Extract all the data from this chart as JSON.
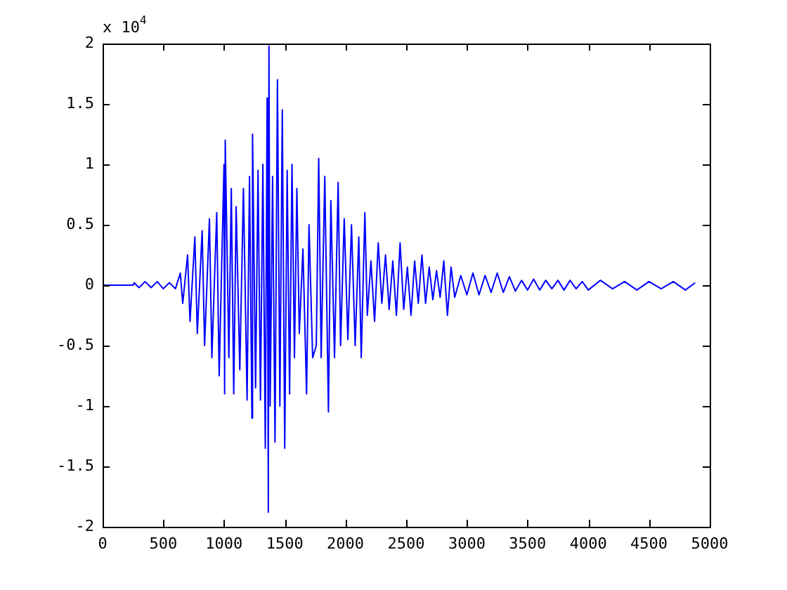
{
  "chart_data": {
    "type": "line",
    "color": "#0000ff",
    "marker": "none",
    "line_style": "solid",
    "grid": false,
    "legend": false,
    "annotations": [
      "x 10$^{4}$"
    ],
    "xlim": [
      0,
      5000
    ],
    "xticks": [
      0,
      500,
      1000,
      1500,
      2000,
      2500,
      3000,
      3500,
      4000,
      4500,
      5000
    ],
    "ylim": [
      -2,
      2
    ],
    "yticks": [
      -2,
      -1.5,
      -1,
      -0.5,
      0,
      0.5,
      1,
      1.5,
      2
    ],
    "x": [
      0,
      250,
      260,
      300,
      350,
      400,
      450,
      500,
      550,
      600,
      640,
      660,
      700,
      720,
      760,
      780,
      820,
      840,
      880,
      900,
      940,
      960,
      1000,
      1005,
      1010,
      1040,
      1060,
      1080,
      1100,
      1130,
      1160,
      1190,
      1210,
      1230,
      1235,
      1260,
      1280,
      1300,
      1320,
      1340,
      1355,
      1365,
      1370,
      1380,
      1400,
      1420,
      1440,
      1460,
      1480,
      1500,
      1520,
      1540,
      1560,
      1580,
      1600,
      1620,
      1650,
      1680,
      1700,
      1730,
      1760,
      1780,
      1800,
      1830,
      1860,
      1880,
      1910,
      1940,
      1960,
      1990,
      2020,
      2050,
      2080,
      2110,
      2130,
      2160,
      2180,
      2210,
      2240,
      2270,
      2300,
      2330,
      2360,
      2390,
      2420,
      2450,
      2480,
      2510,
      2540,
      2570,
      2600,
      2630,
      2660,
      2690,
      2720,
      2750,
      2780,
      2810,
      2840,
      2870,
      2900,
      2950,
      3000,
      3050,
      3100,
      3150,
      3200,
      3250,
      3300,
      3350,
      3400,
      3450,
      3500,
      3550,
      3600,
      3650,
      3700,
      3750,
      3800,
      3850,
      3900,
      3950,
      4000,
      4100,
      4200,
      4300,
      4400,
      4500,
      4600,
      4700,
      4800,
      4880
    ],
    "values": [
      0,
      0,
      0.02,
      -0.02,
      0.03,
      -0.02,
      0.03,
      -0.03,
      0.02,
      -0.03,
      0.1,
      -0.15,
      0.25,
      -0.3,
      0.4,
      -0.4,
      0.45,
      -0.5,
      0.55,
      -0.6,
      0.6,
      -0.75,
      1.0,
      -0.9,
      1.2,
      -0.6,
      0.8,
      -0.9,
      0.65,
      -0.7,
      0.8,
      -0.95,
      0.9,
      -1.1,
      1.25,
      -0.85,
      0.95,
      -0.95,
      1.0,
      -1.35,
      1.55,
      -1.88,
      1.98,
      -1.0,
      0.9,
      -1.3,
      1.7,
      -1.0,
      1.45,
      -1.35,
      0.95,
      -0.9,
      1.0,
      -0.6,
      0.8,
      -0.4,
      0.3,
      -0.9,
      0.5,
      -0.6,
      -0.5,
      1.05,
      -0.6,
      0.9,
      -1.05,
      0.7,
      -0.6,
      0.85,
      -0.5,
      0.55,
      -0.45,
      0.5,
      -0.5,
      0.4,
      -0.6,
      0.6,
      -0.25,
      0.2,
      -0.3,
      0.35,
      -0.15,
      0.25,
      -0.2,
      0.2,
      -0.25,
      0.35,
      -0.2,
      0.15,
      -0.25,
      0.2,
      -0.15,
      0.25,
      -0.15,
      0.15,
      -0.12,
      0.12,
      -0.1,
      0.2,
      -0.25,
      0.15,
      -0.1,
      0.08,
      -0.08,
      0.1,
      -0.08,
      0.08,
      -0.06,
      0.1,
      -0.06,
      0.07,
      -0.05,
      0.04,
      -0.04,
      0.05,
      -0.04,
      0.04,
      -0.03,
      0.04,
      -0.04,
      0.04,
      -0.03,
      0.03,
      -0.04,
      0.04,
      -0.03,
      0.03,
      -0.04,
      0.03,
      -0.03,
      0.03,
      -0.04,
      0.02
    ]
  }
}
